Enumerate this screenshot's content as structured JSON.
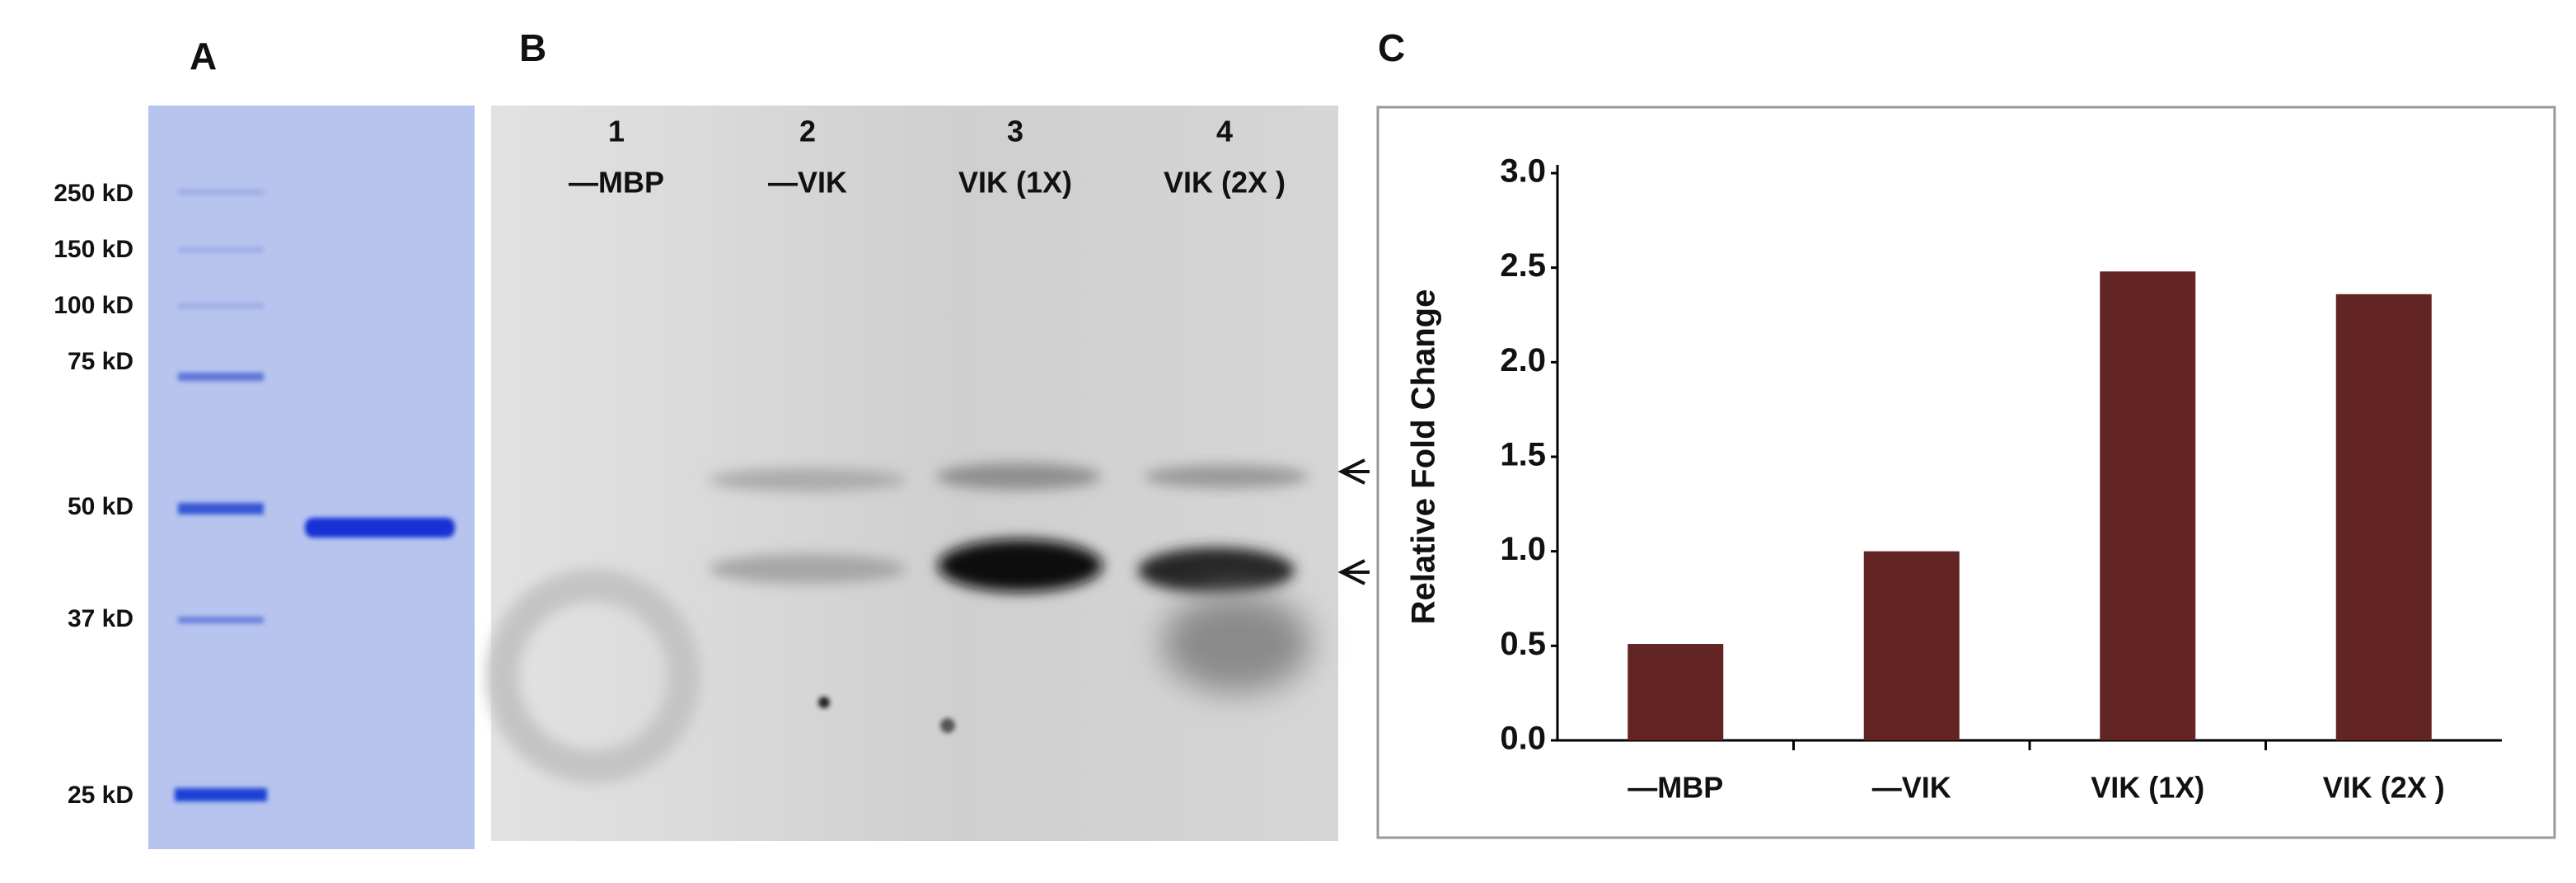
{
  "panel_a": {
    "label": "A",
    "markers": [
      "250 kD",
      "150 kD",
      "100 kD",
      "75 kD",
      "50 kD",
      "37 kD",
      "25 kD"
    ]
  },
  "panel_b": {
    "label": "B",
    "lanes": [
      {
        "number": "1",
        "name": "—MBP"
      },
      {
        "number": "2",
        "name": "—VIK"
      },
      {
        "number": "3",
        "name": "VIK (1X)"
      },
      {
        "number": "4",
        "name": "VIK (2X )"
      }
    ]
  },
  "chart_data": {
    "type": "bar",
    "panel_label": "C",
    "ylabel": "Relative Fold Change",
    "categories": [
      "—MBP",
      "—VIK",
      "VIK (1X)",
      "VIK (2X )"
    ],
    "values": [
      0.51,
      1.0,
      2.48,
      2.36
    ],
    "color": "#632523",
    "ylim": [
      0,
      3
    ],
    "yticks": [
      {
        "value": 0,
        "label": "0.0"
      },
      {
        "value": 0.5,
        "label": "0.5"
      },
      {
        "value": 1,
        "label": "1.0"
      },
      {
        "value": 1.5,
        "label": "1.5"
      },
      {
        "value": 2,
        "label": "2.0"
      },
      {
        "value": 2.5,
        "label": "2.5"
      },
      {
        "value": 3,
        "label": "3.0"
      }
    ],
    "grid": false
  }
}
